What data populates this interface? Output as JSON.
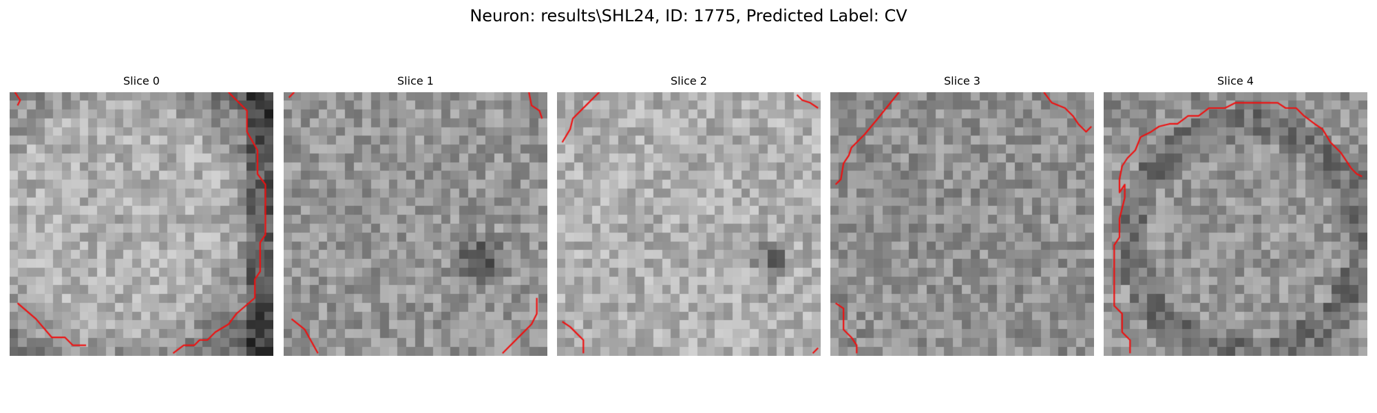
{
  "figure": {
    "title": "Neuron: results\\SHL24, ID: 1775, Predicted Label: CV"
  },
  "panels": [
    {
      "title": "Slice 0",
      "seed": 11,
      "pattern": "ring-right",
      "contour_paths": [
        [
          [
            0.02,
            0.0
          ],
          [
            0.04,
            0.03
          ],
          [
            0.03,
            0.05
          ]
        ],
        [
          [
            0.83,
            0.0
          ],
          [
            0.9,
            0.07
          ],
          [
            0.9,
            0.15
          ],
          [
            0.94,
            0.22
          ],
          [
            0.94,
            0.31
          ],
          [
            0.97,
            0.35
          ],
          [
            0.97,
            0.54
          ],
          [
            0.95,
            0.57
          ],
          [
            0.95,
            0.68
          ],
          [
            0.93,
            0.71
          ],
          [
            0.93,
            0.78
          ],
          [
            0.86,
            0.84
          ],
          [
            0.83,
            0.88
          ],
          [
            0.78,
            0.91
          ],
          [
            0.75,
            0.94
          ],
          [
            0.72,
            0.94
          ],
          [
            0.7,
            0.96
          ],
          [
            0.66,
            0.96
          ],
          [
            0.62,
            0.99
          ]
        ],
        [
          [
            0.03,
            0.8
          ],
          [
            0.1,
            0.86
          ],
          [
            0.16,
            0.93
          ],
          [
            0.21,
            0.93
          ],
          [
            0.24,
            0.96
          ],
          [
            0.29,
            0.96
          ]
        ]
      ]
    },
    {
      "title": "Slice 1",
      "seed": 23,
      "pattern": "dark-blob",
      "contour_paths": [
        [
          [
            0.02,
            0.02
          ],
          [
            0.04,
            0.0
          ]
        ],
        [
          [
            0.93,
            0.0
          ],
          [
            0.94,
            0.05
          ],
          [
            0.97,
            0.07
          ],
          [
            0.98,
            0.1
          ]
        ],
        [
          [
            0.03,
            0.86
          ],
          [
            0.08,
            0.9
          ],
          [
            0.13,
            0.99
          ]
        ],
        [
          [
            0.83,
            0.99
          ],
          [
            0.9,
            0.92
          ],
          [
            0.94,
            0.88
          ],
          [
            0.96,
            0.84
          ],
          [
            0.96,
            0.78
          ]
        ]
      ]
    },
    {
      "title": "Slice 2",
      "seed": 37,
      "pattern": "light-blob",
      "contour_paths": [
        [
          [
            0.02,
            0.19
          ],
          [
            0.05,
            0.14
          ],
          [
            0.06,
            0.1
          ],
          [
            0.11,
            0.05
          ],
          [
            0.16,
            0.0
          ]
        ],
        [
          [
            0.91,
            0.01
          ],
          [
            0.93,
            0.03
          ],
          [
            0.96,
            0.04
          ],
          [
            0.99,
            0.06
          ]
        ],
        [
          [
            0.02,
            0.87
          ],
          [
            0.05,
            0.89
          ],
          [
            0.08,
            0.92
          ],
          [
            0.1,
            0.94
          ],
          [
            0.1,
            0.99
          ]
        ],
        [
          [
            0.97,
            0.99
          ],
          [
            0.99,
            0.97
          ]
        ]
      ]
    },
    {
      "title": "Slice 3",
      "seed": 53,
      "pattern": "uniform",
      "contour_paths": [
        [
          [
            0.02,
            0.35
          ],
          [
            0.04,
            0.33
          ],
          [
            0.05,
            0.27
          ],
          [
            0.07,
            0.24
          ],
          [
            0.08,
            0.21
          ],
          [
            0.13,
            0.16
          ],
          [
            0.18,
            0.1
          ],
          [
            0.26,
            0.0
          ]
        ],
        [
          [
            0.81,
            0.0
          ],
          [
            0.84,
            0.04
          ],
          [
            0.89,
            0.06
          ],
          [
            0.92,
            0.09
          ],
          [
            0.94,
            0.12
          ],
          [
            0.97,
            0.15
          ],
          [
            0.99,
            0.13
          ]
        ],
        [
          [
            0.02,
            0.8
          ],
          [
            0.05,
            0.82
          ],
          [
            0.05,
            0.9
          ],
          [
            0.08,
            0.93
          ],
          [
            0.1,
            0.96
          ],
          [
            0.1,
            0.99
          ]
        ]
      ]
    },
    {
      "title": "Slice 4",
      "seed": 71,
      "pattern": "ring-cell",
      "contour_paths": [
        [
          [
            0.1,
            0.99
          ],
          [
            0.1,
            0.94
          ],
          [
            0.07,
            0.91
          ],
          [
            0.07,
            0.84
          ],
          [
            0.04,
            0.81
          ],
          [
            0.04,
            0.58
          ],
          [
            0.06,
            0.55
          ],
          [
            0.06,
            0.48
          ],
          [
            0.08,
            0.4
          ],
          [
            0.08,
            0.35
          ],
          [
            0.06,
            0.38
          ],
          [
            0.06,
            0.33
          ],
          [
            0.07,
            0.28
          ],
          [
            0.09,
            0.25
          ],
          [
            0.12,
            0.22
          ],
          [
            0.14,
            0.17
          ],
          [
            0.18,
            0.15
          ],
          [
            0.21,
            0.13
          ],
          [
            0.25,
            0.12
          ],
          [
            0.28,
            0.12
          ],
          [
            0.32,
            0.09
          ],
          [
            0.36,
            0.09
          ],
          [
            0.4,
            0.06
          ],
          [
            0.46,
            0.06
          ],
          [
            0.5,
            0.04
          ],
          [
            0.58,
            0.04
          ],
          [
            0.66,
            0.04
          ],
          [
            0.69,
            0.06
          ],
          [
            0.73,
            0.06
          ],
          [
            0.76,
            0.09
          ],
          [
            0.8,
            0.12
          ],
          [
            0.83,
            0.14
          ],
          [
            0.86,
            0.19
          ],
          [
            0.9,
            0.23
          ],
          [
            0.92,
            0.26
          ],
          [
            0.94,
            0.29
          ],
          [
            0.96,
            0.31
          ],
          [
            0.98,
            0.32
          ]
        ]
      ]
    }
  ],
  "colors": {
    "contour": "#ee1111"
  }
}
